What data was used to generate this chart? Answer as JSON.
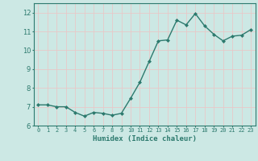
{
  "x": [
    0,
    1,
    2,
    3,
    4,
    5,
    6,
    7,
    8,
    9,
    10,
    11,
    12,
    13,
    14,
    15,
    16,
    17,
    18,
    19,
    20,
    21,
    22,
    23
  ],
  "y": [
    7.1,
    7.1,
    7.0,
    7.0,
    6.7,
    6.5,
    6.7,
    6.65,
    6.55,
    6.65,
    7.45,
    8.3,
    9.4,
    10.5,
    10.55,
    11.6,
    11.35,
    11.95,
    11.3,
    10.85,
    10.5,
    10.75,
    10.8,
    11.1
  ],
  "line_color": "#2d7a6e",
  "marker": "D",
  "markersize": 2.0,
  "linewidth": 1.0,
  "xlabel": "Humidex (Indice chaleur)",
  "ylim": [
    6,
    12.5
  ],
  "yticks": [
    6,
    7,
    8,
    9,
    10,
    11,
    12
  ],
  "bg_color": "#cce8e4",
  "grid_color": "#e8c8c8",
  "tick_color": "#2d7a6e",
  "label_color": "#2d7a6e",
  "spine_color": "#2d7a6e"
}
